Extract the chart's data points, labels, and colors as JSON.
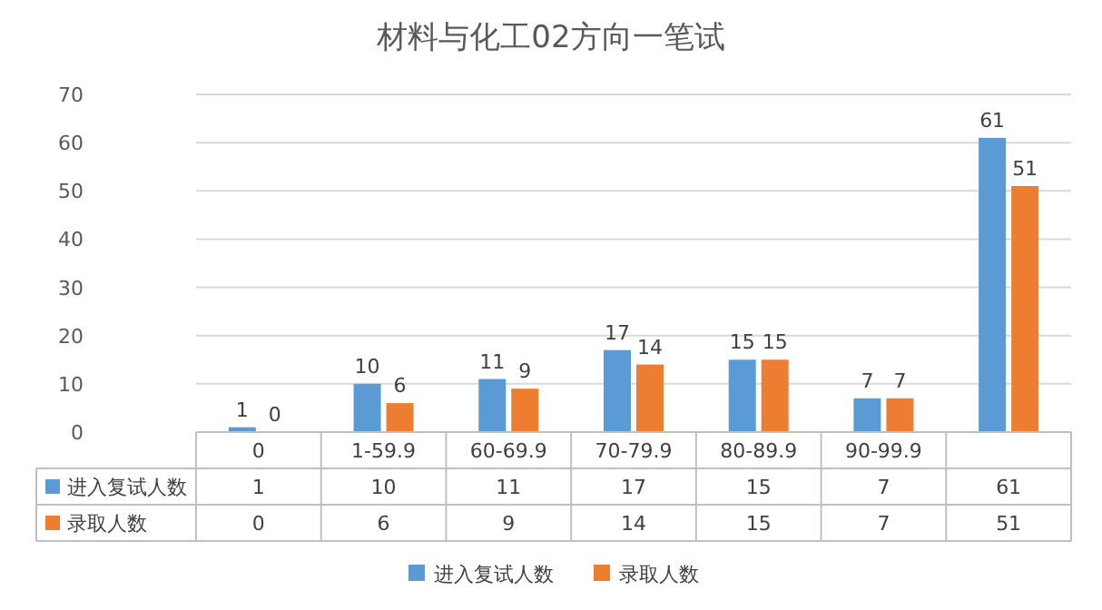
{
  "chart_data": {
    "type": "bar",
    "title": "材料与化工02方向一笔试",
    "categories": [
      "0",
      "1-59.9",
      "60-69.9",
      "70-79.9",
      "80-89.9",
      "90-99.9",
      null
    ],
    "series": [
      {
        "name": "进入复试人数",
        "color": "#5b9bd5",
        "values": [
          1,
          10,
          11,
          17,
          15,
          7,
          61
        ]
      },
      {
        "name": "录取人数",
        "color": "#ed7d31",
        "values": [
          0,
          6,
          9,
          14,
          15,
          7,
          51
        ]
      }
    ],
    "ylim": [
      0,
      70
    ],
    "yticks": [
      0,
      10,
      20,
      30,
      40,
      50,
      60,
      70
    ],
    "grid": "y",
    "legend": "bottom",
    "data_labels": true,
    "annotations": [
      {
        "text": "1",
        "x": "0",
        "y": 1
      },
      {
        "text": "10",
        "x": "1-59.9",
        "y": 10
      },
      {
        "text": "11",
        "x": "60-69.9",
        "y": 11
      },
      {
        "text": "17",
        "x": "70-79.9",
        "y": 17
      },
      {
        "text": "15",
        "x": "80-89.9",
        "y": 15
      },
      {
        "text": "7",
        "x": "90-99.9",
        "y": 7
      },
      {
        "text": "61",
        "y": 61
      },
      {
        "text": "0",
        "x": "0",
        "y": 0
      },
      {
        "text": "6",
        "x": "1-59.9",
        "y": 6
      },
      {
        "text": "9",
        "x": "60-69.9",
        "y": 9
      },
      {
        "text": "14",
        "x": "70-79.9",
        "y": 14
      },
      {
        "text": "15",
        "x": "80-89.9",
        "y": 15
      },
      {
        "text": "7",
        "x": "90-99.9",
        "y": 7
      },
      {
        "text": "51",
        "y": 51
      }
    ]
  }
}
